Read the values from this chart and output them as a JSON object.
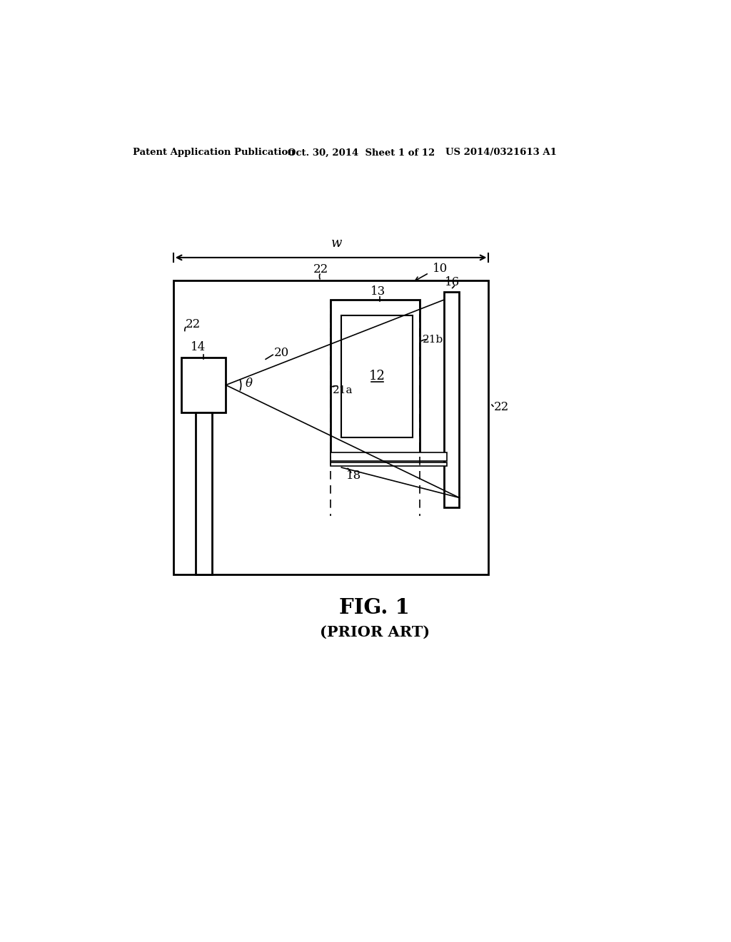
{
  "bg_color": "#ffffff",
  "text_color": "#000000",
  "header_left": "Patent Application Publication",
  "header_mid": "Oct. 30, 2014  Sheet 1 of 12",
  "header_right": "US 2014/0321613 A1",
  "fig_label": "FIG. 1",
  "fig_sublabel": "(PRIOR ART)",
  "label_10": "10",
  "label_12": "12",
  "label_13": "13",
  "label_14": "14",
  "label_16": "16",
  "label_18": "18",
  "label_20": "20",
  "label_21a": "21a",
  "label_21b": "21b",
  "label_22": "22",
  "label_theta": "θ",
  "label_w": "w"
}
